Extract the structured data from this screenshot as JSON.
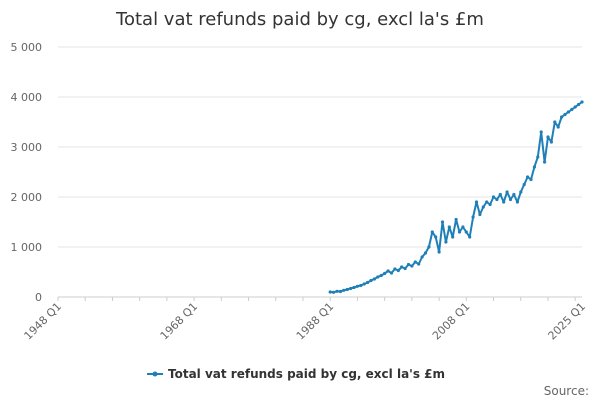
{
  "chart_data": {
    "type": "line",
    "title": "Total vat refunds paid by cg, excl la's £m",
    "xlabel": "",
    "ylabel": "",
    "x_range": [
      1948,
      2025
    ],
    "x_tick_labels": [
      "1948 Q1",
      "1968 Q1",
      "1988 Q1",
      "2008 Q1",
      "2025 Q1"
    ],
    "ylim": [
      0,
      5000
    ],
    "y_ticks": [
      0,
      1000,
      2000,
      3000,
      4000,
      5000
    ],
    "y_tick_labels": [
      "0",
      "1 000",
      "2 000",
      "3 000",
      "4 000",
      "5 000"
    ],
    "grid": "horizontal",
    "legend_position": "bottom",
    "color": "#1f7fb8",
    "series": [
      {
        "name": "Total vat refunds paid by cg, excl la's £m",
        "x": [
          1988.0,
          1988.5,
          1989.0,
          1989.5,
          1990.0,
          1990.5,
          1991.0,
          1991.5,
          1992.0,
          1992.5,
          1993.0,
          1993.5,
          1994.0,
          1994.5,
          1995.0,
          1995.5,
          1996.0,
          1996.5,
          1997.0,
          1997.5,
          1998.0,
          1998.5,
          1999.0,
          1999.5,
          2000.0,
          2000.5,
          2001.0,
          2001.5,
          2002.0,
          2002.5,
          2003.0,
          2003.5,
          2004.0,
          2004.5,
          2005.0,
          2005.5,
          2006.0,
          2006.5,
          2007.0,
          2007.5,
          2008.0,
          2008.5,
          2009.0,
          2009.5,
          2010.0,
          2010.5,
          2011.0,
          2011.5,
          2012.0,
          2012.5,
          2013.0,
          2013.5,
          2014.0,
          2014.5,
          2015.0,
          2015.5,
          2016.0,
          2016.5,
          2017.0,
          2017.5,
          2018.0,
          2018.5,
          2019.0,
          2019.5,
          2020.0,
          2020.5,
          2021.0,
          2021.5,
          2022.0,
          2022.5,
          2023.0,
          2023.5,
          2024.0,
          2024.5,
          2025.0
        ],
        "values": [
          100,
          95,
          115,
          110,
          135,
          150,
          170,
          190,
          215,
          230,
          260,
          290,
          330,
          360,
          400,
          430,
          470,
          520,
          480,
          560,
          530,
          600,
          570,
          650,
          620,
          700,
          660,
          800,
          880,
          1000,
          1300,
          1200,
          900,
          1500,
          1100,
          1400,
          1200,
          1550,
          1300,
          1400,
          1300,
          1200,
          1600,
          1900,
          1650,
          1800,
          1900,
          1850,
          2000,
          1950,
          2050,
          1900,
          2100,
          1950,
          2050,
          1900,
          2100,
          2250,
          2400,
          2350,
          2600,
          2800,
          3300,
          2700,
          3200,
          3100,
          3500,
          3400,
          3600,
          3650,
          3700,
          3750,
          3800,
          3850,
          3900
        ]
      }
    ]
  },
  "legend": {
    "label": "Total vat refunds paid by cg, excl la's £m"
  },
  "source": {
    "label": "Source:"
  }
}
